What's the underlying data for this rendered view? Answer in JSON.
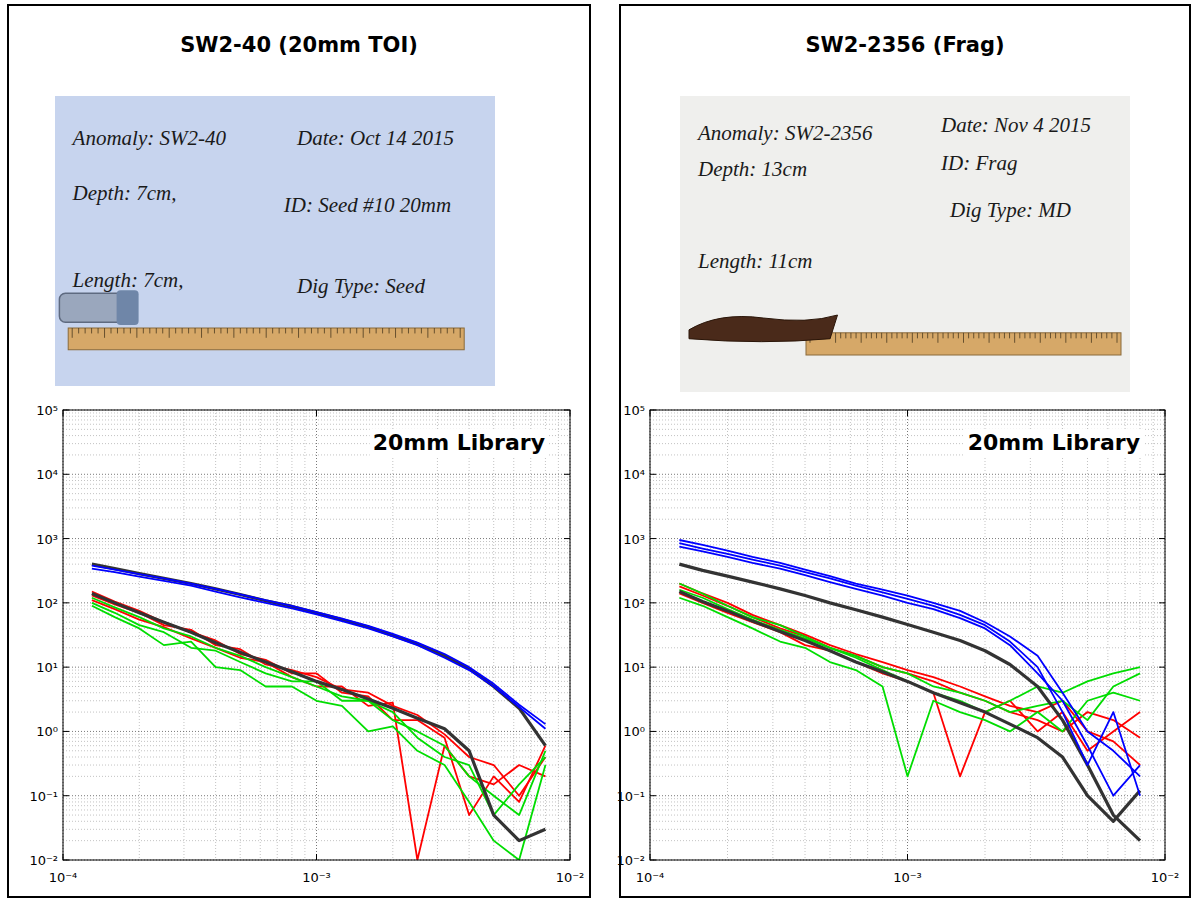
{
  "panels": [
    {
      "title": "SW2-40 (20mm TOI)",
      "board": {
        "anomaly": "Anomaly: SW2-40",
        "date": "Date: Oct 14 2015",
        "depth": "Depth: 7cm,",
        "id": "ID: Seed #10 20mm",
        "length": "Length: 7cm,",
        "dig_type": "Dig Type: Seed"
      }
    },
    {
      "title": "SW2-2356 (Frag)",
      "board": {
        "anomaly": "Anomaly: SW2-2356",
        "date": "Date: Nov 4 2015",
        "depth": "Depth: 13cm",
        "id": "ID: Frag",
        "length": "Length: 11cm",
        "dig_type": "Dig Type: MD"
      }
    }
  ],
  "chart_data": [
    {
      "type": "line",
      "title": "20mm Library",
      "log": true,
      "grid": true,
      "xlim": [
        0.0001,
        0.01
      ],
      "ylim": [
        0.01,
        100000
      ],
      "xticks": [
        {
          "value": 0.0001,
          "label": "10⁻⁴"
        },
        {
          "value": 0.001,
          "label": "10⁻³"
        },
        {
          "value": 0.01,
          "label": "10⁻²"
        }
      ],
      "yticks": [
        {
          "value": 0.01,
          "label": "10⁻²"
        },
        {
          "value": 0.1,
          "label": "10⁻¹"
        },
        {
          "value": 1,
          "label": "10⁰"
        },
        {
          "value": 10,
          "label": "10¹"
        },
        {
          "value": 100,
          "label": "10²"
        },
        {
          "value": 1000,
          "label": "10³"
        },
        {
          "value": 10000,
          "label": "10⁴"
        },
        {
          "value": 100000,
          "label": "10⁵"
        }
      ],
      "x": [
        0.00013,
        0.00016,
        0.0002,
        0.00025,
        0.00032,
        0.0004,
        0.0005,
        0.00063,
        0.0008,
        0.001,
        0.00126,
        0.0016,
        0.002,
        0.0025,
        0.0032,
        0.004,
        0.005,
        0.0063,
        0.008
      ],
      "series": [
        {
          "color": "#ff0000",
          "values": [
            130,
            95,
            70,
            45,
            38,
            22,
            19,
            11,
            9,
            7,
            4.5,
            4,
            2.5,
            1.8,
            0.9,
            0.4,
            0.3,
            0.1,
            0.4
          ]
        },
        {
          "color": "#ff0000",
          "values": [
            110,
            80,
            55,
            42,
            28,
            20,
            14,
            12,
            7,
            5,
            5,
            2.5,
            2.8,
            0.01,
            0.6,
            0.2,
            0.15,
            0.3,
            0.2
          ]
        },
        {
          "color": "#ff0000",
          "values": [
            150,
            105,
            75,
            50,
            35,
            26,
            16,
            13,
            8,
            8,
            4,
            3.5,
            1.5,
            1.5,
            0.8,
            0.05,
            0.2,
            0.08,
            0.6
          ]
        },
        {
          "color": "#00dd00",
          "values": [
            100,
            70,
            45,
            35,
            20,
            18,
            12,
            8,
            6,
            6,
            3,
            3,
            1.5,
            1,
            0.6,
            0.2,
            0.1,
            0.05,
            0.5
          ]
        },
        {
          "color": "#00dd00",
          "values": [
            90,
            60,
            40,
            22,
            25,
            10,
            9,
            5,
            5,
            3,
            2.5,
            1,
            1.2,
            0.5,
            0.3,
            0.08,
            0.02,
            0.01,
            0.3
          ]
        },
        {
          "color": "#00dd00",
          "values": [
            120,
            85,
            60,
            40,
            30,
            20,
            15,
            10,
            7,
            5,
            3.5,
            3,
            2,
            0.8,
            0.4,
            0.3,
            0.05,
            0.15,
            0.4
          ]
        },
        {
          "color": "#333333",
          "values": [
            140,
            100,
            70,
            50,
            35,
            24,
            17,
            12,
            8.5,
            6,
            4.5,
            3.2,
            2.3,
            1.6,
            1.1,
            0.5,
            0.05,
            0.02,
            0.03
          ]
        },
        {
          "color": "#333333",
          "values": [
            400,
            340,
            285,
            240,
            200,
            165,
            135,
            108,
            88,
            70,
            55,
            42,
            31,
            23,
            15,
            9.5,
            5,
            2.3,
            0.6
          ]
        },
        {
          "color": "#0000ff",
          "values": [
            380,
            330,
            280,
            240,
            200,
            165,
            135,
            110,
            90,
            72,
            57,
            44,
            33,
            24,
            16,
            10,
            5.5,
            2.6,
            1.3
          ]
        },
        {
          "color": "#0000ff",
          "values": [
            340,
            300,
            255,
            220,
            185,
            150,
            122,
            100,
            82,
            66,
            52,
            40,
            30,
            22,
            14,
            9,
            5,
            2.4,
            1.1
          ]
        }
      ]
    },
    {
      "type": "line",
      "title": "20mm Library",
      "log": true,
      "grid": true,
      "xlim": [
        0.0001,
        0.01
      ],
      "ylim": [
        0.01,
        100000
      ],
      "xticks": [
        {
          "value": 0.0001,
          "label": "10⁻⁴"
        },
        {
          "value": 0.001,
          "label": "10⁻³"
        },
        {
          "value": 0.01,
          "label": "10⁻²"
        }
      ],
      "yticks": [
        {
          "value": 0.01,
          "label": "10⁻²"
        },
        {
          "value": 0.1,
          "label": "10⁻¹"
        },
        {
          "value": 1,
          "label": "10⁰"
        },
        {
          "value": 10,
          "label": "10¹"
        },
        {
          "value": 100,
          "label": "10²"
        },
        {
          "value": 1000,
          "label": "10³"
        },
        {
          "value": 10000,
          "label": "10⁴"
        },
        {
          "value": 100000,
          "label": "10⁵"
        }
      ],
      "x": [
        0.00013,
        0.00016,
        0.0002,
        0.00025,
        0.00032,
        0.0004,
        0.0005,
        0.00063,
        0.0008,
        0.001,
        0.00126,
        0.0016,
        0.002,
        0.0025,
        0.0032,
        0.004,
        0.005,
        0.0063,
        0.008
      ],
      "series": [
        {
          "color": "#ff0000",
          "values": [
            180,
            130,
            90,
            60,
            40,
            30,
            20,
            15,
            10,
            8,
            6,
            4,
            3,
            2,
            1.5,
            1,
            2,
            1.5,
            0.8
          ]
        },
        {
          "color": "#ff0000",
          "values": [
            140,
            100,
            70,
            50,
            35,
            22,
            18,
            12,
            8,
            6,
            4,
            0.2,
            2,
            3,
            1,
            2,
            0.5,
            1,
            2
          ]
        },
        {
          "color": "#ff0000",
          "values": [
            200,
            140,
            100,
            65,
            45,
            32,
            22,
            16,
            12,
            9,
            7,
            5,
            3.5,
            2.5,
            2,
            3,
            1,
            0.7,
            0.3
          ]
        },
        {
          "color": "#00dd00",
          "values": [
            160,
            120,
            80,
            55,
            38,
            28,
            20,
            14,
            9,
            6,
            4,
            3,
            2,
            3,
            5,
            4,
            6,
            8,
            10
          ]
        },
        {
          "color": "#00dd00",
          "values": [
            120,
            90,
            60,
            40,
            25,
            20,
            12,
            9,
            5,
            0.2,
            3,
            2,
            1.5,
            1,
            2,
            1,
            3,
            4,
            3
          ]
        },
        {
          "color": "#00dd00",
          "values": [
            200,
            140,
            90,
            60,
            45,
            30,
            20,
            15,
            10,
            8,
            5,
            4,
            3,
            2,
            2.5,
            3,
            1.5,
            5,
            8
          ]
        },
        {
          "color": "#333333",
          "values": [
            150,
            105,
            75,
            52,
            36,
            26,
            18,
            12,
            8.5,
            6,
            4,
            2.8,
            2,
            1.3,
            0.8,
            0.4,
            0.1,
            0.04,
            0.12
          ]
        },
        {
          "color": "#333333",
          "values": [
            400,
            320,
            260,
            210,
            165,
            130,
            100,
            78,
            60,
            46,
            35,
            26,
            18,
            11,
            5,
            1.5,
            0.3,
            0.05,
            0.02
          ]
        },
        {
          "color": "#0000ff",
          "values": [
            950,
            800,
            650,
            520,
            420,
            330,
            260,
            200,
            160,
            130,
            100,
            75,
            50,
            30,
            15,
            4,
            1,
            0.5,
            0.2
          ]
        },
        {
          "color": "#0000ff",
          "values": [
            850,
            700,
            580,
            470,
            380,
            300,
            240,
            185,
            145,
            115,
            90,
            65,
            45,
            25,
            10,
            2,
            0.3,
            2,
            0.1
          ]
        },
        {
          "color": "#0000ff",
          "values": [
            750,
            630,
            520,
            420,
            340,
            270,
            210,
            165,
            130,
            100,
            80,
            58,
            40,
            22,
            8,
            3,
            0.6,
            0.1,
            0.3
          ]
        }
      ]
    }
  ]
}
